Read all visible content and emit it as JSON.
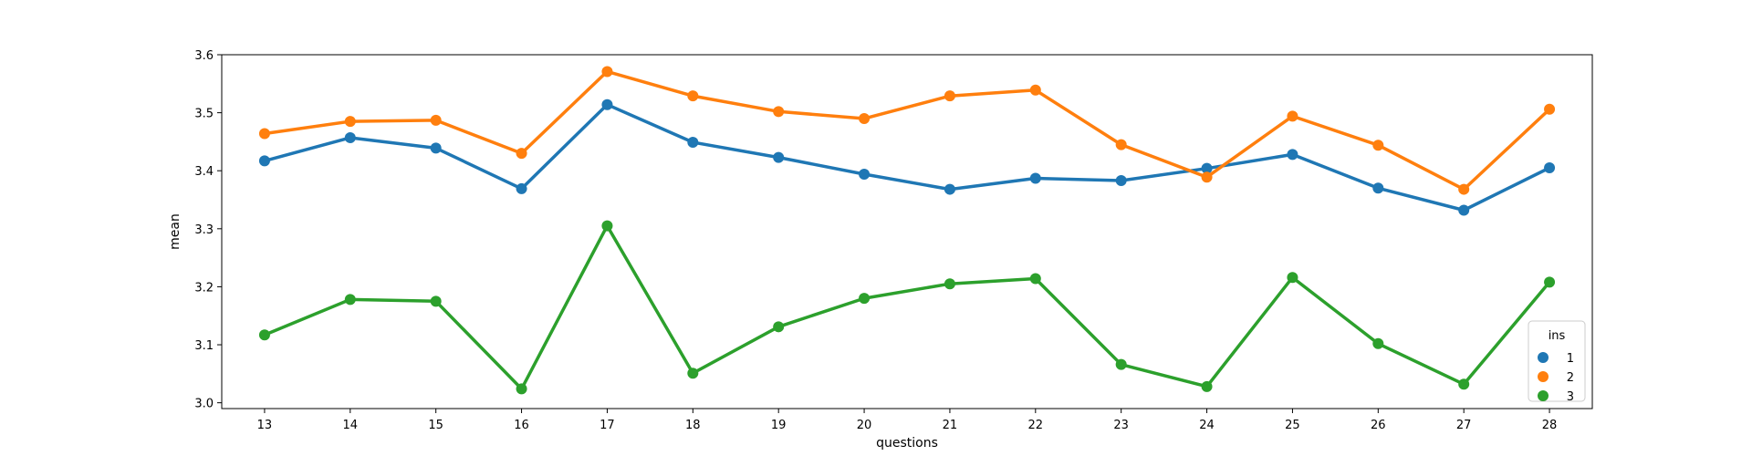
{
  "chart_data": {
    "type": "line",
    "xlabel": "questions",
    "ylabel": "mean",
    "categories": [
      "13",
      "14",
      "15",
      "16",
      "17",
      "18",
      "19",
      "20",
      "21",
      "22",
      "23",
      "24",
      "25",
      "26",
      "27",
      "28"
    ],
    "ylim": [
      2.99,
      3.6
    ],
    "yticks": [
      "3.0",
      "3.1",
      "3.2",
      "3.3",
      "3.4",
      "3.5",
      "3.6"
    ],
    "grid": false,
    "legend": {
      "title": "ins",
      "placement": "lower-right"
    },
    "series": [
      {
        "name": "1",
        "color": "#1f77b4",
        "values": [
          3.417,
          3.457,
          3.439,
          3.369,
          3.514,
          3.449,
          3.423,
          3.394,
          3.368,
          3.387,
          3.383,
          3.404,
          3.428,
          3.37,
          3.332,
          3.405
        ]
      },
      {
        "name": "2",
        "color": "#ff7f0e",
        "values": [
          3.464,
          3.485,
          3.487,
          3.43,
          3.571,
          3.529,
          3.502,
          3.49,
          3.529,
          3.539,
          3.445,
          3.389,
          3.494,
          3.444,
          3.368,
          3.506
        ]
      },
      {
        "name": "3",
        "color": "#2ca02c",
        "values": [
          3.117,
          3.178,
          3.175,
          3.024,
          3.305,
          3.051,
          3.131,
          3.18,
          3.205,
          3.214,
          3.066,
          3.028,
          3.216,
          3.102,
          3.032,
          3.208
        ]
      }
    ]
  }
}
